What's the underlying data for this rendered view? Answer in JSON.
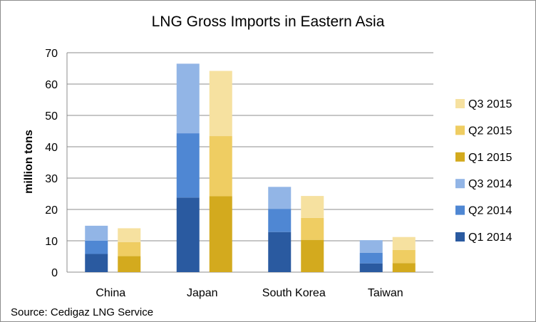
{
  "chart_data": {
    "type": "bar",
    "stacked": true,
    "title": "LNG Gross Imports in Eastern Asia",
    "ylabel": "million tons",
    "xlabel": "",
    "ylim": [
      0,
      70
    ],
    "yticks": [
      0,
      10,
      20,
      30,
      40,
      50,
      60,
      70
    ],
    "grid": true,
    "legend_position": "right",
    "categories": [
      "China",
      "Japan",
      "South Korea",
      "Taiwan"
    ],
    "groups": [
      {
        "year": "2014",
        "series": [
          {
            "name": "Q1 2014",
            "color": "#2a5aa0",
            "values": [
              5.8,
              23.8,
              12.8,
              2.8
            ]
          },
          {
            "name": "Q2 2014",
            "color": "#4f87d3",
            "values": [
              4.2,
              20.5,
              7.4,
              3.4
            ]
          },
          {
            "name": "Q3 2014",
            "color": "#92b5e6",
            "values": [
              4.8,
              22.2,
              7.0,
              4.0
            ]
          }
        ]
      },
      {
        "year": "2015",
        "series": [
          {
            "name": "Q1 2015",
            "color": "#d3aa1e",
            "values": [
              5.1,
              24.2,
              10.3,
              2.9
            ]
          },
          {
            "name": "Q2 2015",
            "color": "#efcd62",
            "values": [
              4.5,
              19.2,
              7.0,
              4.2
            ]
          },
          {
            "name": "Q3 2015",
            "color": "#f6e1a0",
            "values": [
              4.4,
              20.8,
              7.0,
              4.1
            ]
          }
        ]
      }
    ],
    "source": "Source: Cedigaz LNG Service"
  }
}
